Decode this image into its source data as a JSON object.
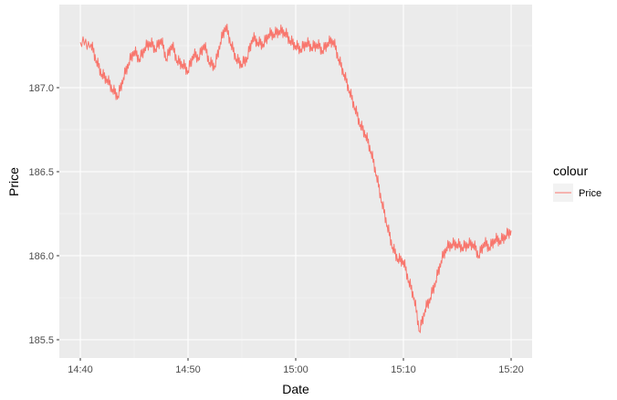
{
  "chart_data": {
    "type": "line",
    "xlabel": "Date",
    "ylabel": "Price",
    "x_tick_labels": [
      "14:40",
      "14:50",
      "15:00",
      "15:10",
      "15:20"
    ],
    "x_tick_minutes": [
      0,
      10,
      20,
      30,
      40
    ],
    "y_ticks": [
      185.5,
      186.0,
      186.5,
      187.0
    ],
    "y_tick_labels": [
      "185.5",
      "186.0",
      "186.5",
      "187.0"
    ],
    "xlim": [
      "14:40",
      "15:20"
    ],
    "ylim": [
      185.45,
      187.4
    ],
    "grid": true,
    "legend": {
      "title": "colour",
      "placement": "right",
      "entries": [
        "Price"
      ]
    },
    "series": [
      {
        "name": "Price",
        "color": "#F8766D",
        "x": [
          "14:40:00",
          "14:41:00",
          "14:41:30",
          "14:42:00",
          "14:42:30",
          "14:43:00",
          "14:43:30",
          "14:44:00",
          "14:44:30",
          "14:45:00",
          "14:45:30",
          "14:46:00",
          "14:46:30",
          "14:47:00",
          "14:47:30",
          "14:48:00",
          "14:48:30",
          "14:49:00",
          "14:49:30",
          "14:50:00",
          "14:50:30",
          "14:51:00",
          "14:51:30",
          "14:52:00",
          "14:52:30",
          "14:53:00",
          "14:53:30",
          "14:54:00",
          "14:54:30",
          "14:55:00",
          "14:55:30",
          "14:56:00",
          "14:56:30",
          "14:57:00",
          "14:57:30",
          "14:58:00",
          "14:58:30",
          "14:59:00",
          "14:59:30",
          "15:00:00",
          "15:00:30",
          "15:01:00",
          "15:01:30",
          "15:02:00",
          "15:02:30",
          "15:03:00",
          "15:03:30",
          "15:04:00",
          "15:04:30",
          "15:05:00",
          "15:05:30",
          "15:06:00",
          "15:06:30",
          "15:07:00",
          "15:07:30",
          "15:08:00",
          "15:08:30",
          "15:09:00",
          "15:09:30",
          "15:10:00",
          "15:10:30",
          "15:11:00",
          "15:11:30",
          "15:12:00",
          "15:12:30",
          "15:13:00",
          "15:13:30",
          "15:14:00",
          "15:14:30",
          "15:15:00",
          "15:15:30",
          "15:16:00",
          "15:16:30",
          "15:17:00",
          "15:17:30",
          "15:18:00",
          "15:18:30",
          "15:19:00",
          "15:19:30",
          "15:20:00"
        ],
        "y": [
          187.27,
          187.26,
          187.16,
          187.08,
          187.05,
          186.99,
          186.95,
          187.06,
          187.15,
          187.22,
          187.17,
          187.24,
          187.27,
          187.23,
          187.29,
          187.17,
          187.26,
          187.16,
          187.14,
          187.1,
          187.2,
          187.18,
          187.26,
          187.15,
          187.13,
          187.27,
          187.37,
          187.26,
          187.17,
          187.14,
          187.18,
          187.3,
          187.27,
          187.26,
          187.32,
          187.32,
          187.34,
          187.33,
          187.28,
          187.25,
          187.23,
          187.27,
          187.24,
          187.26,
          187.22,
          187.27,
          187.28,
          187.17,
          187.08,
          186.98,
          186.88,
          186.78,
          186.72,
          186.62,
          186.48,
          186.32,
          186.18,
          186.05,
          185.98,
          185.97,
          185.85,
          185.75,
          185.55,
          185.68,
          185.75,
          185.85,
          185.97,
          186.05,
          186.07,
          186.07,
          186.05,
          186.07,
          186.07,
          186.0,
          186.08,
          186.05,
          186.1,
          186.09,
          186.12,
          186.15
        ]
      }
    ]
  }
}
